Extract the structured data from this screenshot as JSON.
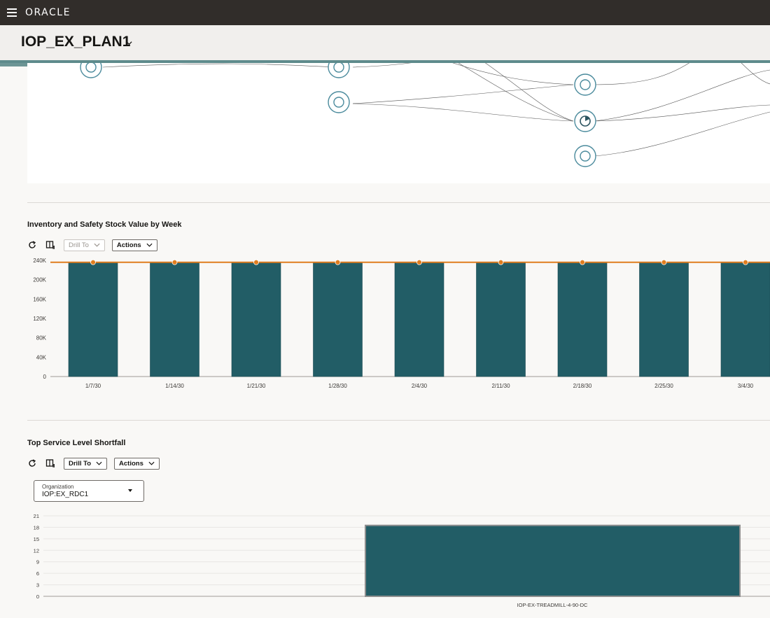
{
  "header": {
    "brand": "ORACLE",
    "plan_title": "IOP_EX_PLAN1"
  },
  "inventory_chart": {
    "title": "Inventory and Safety Stock Value by Week",
    "toolbar": {
      "drill_to": "Drill To",
      "actions": "Actions"
    }
  },
  "shortfall_chart": {
    "title": "Top Service Level Shortfall",
    "toolbar": {
      "drill_to": "Drill To",
      "actions": "Actions"
    },
    "organization": {
      "label": "Organization",
      "value": "IOP:EX_RDC1"
    }
  },
  "colors": {
    "bar": "#225d66",
    "line": "#e07d1f",
    "topbar": "#312d2a"
  },
  "chart_data": [
    {
      "type": "bar",
      "title": "Inventory and Safety Stock Value by Week",
      "categories": [
        "1/7/30",
        "1/14/30",
        "1/21/30",
        "1/28/30",
        "2/4/30",
        "2/11/30",
        "2/18/30",
        "2/25/30",
        "3/4/30"
      ],
      "yticks": [
        "0",
        "40K",
        "80K",
        "120K",
        "160K",
        "200K",
        "240K"
      ],
      "ylim": [
        0,
        240000
      ],
      "series": [
        {
          "type": "bar",
          "values": [
            235000,
            235000,
            235000,
            235000,
            235000,
            235000,
            235000,
            235000,
            235000
          ]
        },
        {
          "type": "line",
          "values": [
            236000,
            236000,
            236000,
            236000,
            236000,
            236000,
            236000,
            236000,
            236000
          ]
        }
      ],
      "grid": false
    },
    {
      "type": "bar",
      "title": "Top Service Level Shortfall",
      "categories": [
        "IOP-EX-TREADMILL-4-90-DC"
      ],
      "values": [
        18.5
      ],
      "yticks": [
        "0",
        "3",
        "6",
        "9",
        "12",
        "15",
        "18",
        "21"
      ],
      "ylim": [
        0,
        21
      ],
      "grid": true
    }
  ]
}
